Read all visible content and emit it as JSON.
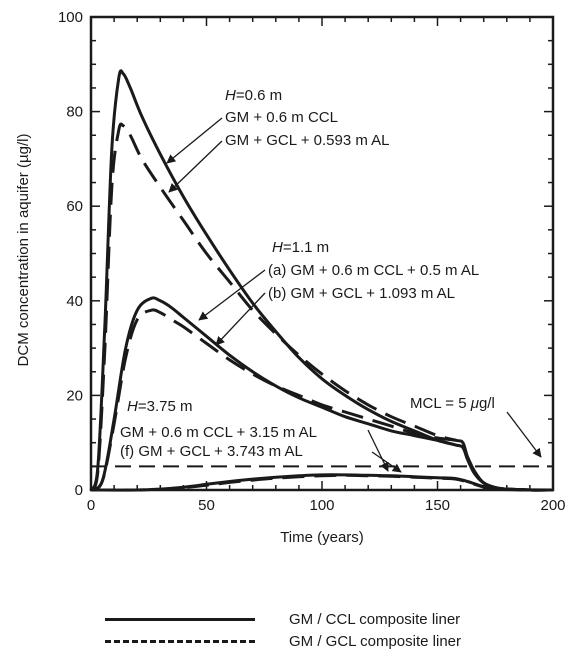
{
  "chart_data": {
    "type": "line",
    "xlabel": "Time (years)",
    "ylabel": "DCM concentration in aquifer (µg/l)",
    "xlim": [
      0,
      200
    ],
    "ylim": [
      0,
      100
    ],
    "x_ticks": [
      "0",
      "50",
      "100",
      "150",
      "200"
    ],
    "y_ticks": [
      "0",
      "20",
      "40",
      "60",
      "80",
      "100"
    ],
    "grid": false,
    "series": [
      {
        "style": "solid",
        "group": "H=0.6 m",
        "x": [
          0,
          3,
          6,
          9,
          12,
          14,
          17,
          22,
          30,
          40,
          50,
          60,
          70,
          80,
          90,
          100,
          110,
          120,
          130,
          140,
          150,
          158,
          161,
          163,
          166,
          170,
          175,
          180,
          190,
          200
        ],
        "y": [
          0,
          5,
          35,
          72,
          87,
          88,
          85,
          79,
          71,
          62,
          54,
          46.5,
          39.5,
          33.5,
          28,
          23.5,
          20,
          17,
          14.5,
          12.5,
          10.5,
          9.5,
          9,
          6.5,
          3.5,
          1.5,
          0.5,
          0.2,
          0,
          0
        ]
      },
      {
        "style": "dashed",
        "group": "H=0.6 m",
        "x": [
          0,
          3,
          6,
          9,
          12,
          14,
          17,
          22,
          30,
          40,
          50,
          60,
          70,
          80,
          90,
          100,
          110,
          120,
          130,
          140,
          150,
          158,
          161,
          163,
          166,
          170,
          175,
          180,
          190,
          200
        ],
        "y": [
          0,
          4,
          30,
          64,
          76,
          77,
          75,
          70,
          64,
          57,
          50,
          44,
          38,
          33,
          28.5,
          24.5,
          21,
          18,
          15.5,
          13.5,
          11.5,
          10.5,
          10,
          7,
          4,
          1.5,
          0.5,
          0.2,
          0,
          0
        ]
      },
      {
        "style": "solid",
        "group": "H=1.1 m",
        "x": [
          0,
          5,
          10,
          15,
          20,
          26,
          30,
          35,
          40,
          50,
          60,
          70,
          80,
          90,
          100,
          110,
          120,
          130,
          140,
          150,
          158,
          161,
          163,
          166,
          170,
          175,
          180,
          190,
          200
        ],
        "y": [
          0,
          2,
          15,
          30,
          38,
          40.5,
          40,
          38.5,
          36.5,
          32.5,
          28.5,
          25,
          22,
          19.5,
          17.5,
          15.5,
          14,
          12.5,
          11.5,
          10.5,
          9.5,
          9,
          6.5,
          3.5,
          1.5,
          0.5,
          0.2,
          0,
          0
        ]
      },
      {
        "style": "dashed",
        "group": "H=1.1 m",
        "x": [
          0,
          5,
          10,
          15,
          20,
          26,
          30,
          35,
          40,
          50,
          60,
          70,
          80,
          90,
          100,
          110,
          120,
          130,
          140,
          150,
          158,
          161,
          163,
          166,
          170,
          175,
          180,
          190,
          200
        ],
        "y": [
          0,
          2,
          14,
          28,
          36,
          38,
          37.5,
          36,
          34.5,
          31,
          27.5,
          24.5,
          22,
          20,
          18,
          16.5,
          15,
          13.5,
          12,
          11,
          10.5,
          10,
          7,
          4,
          1.5,
          0.5,
          0.2,
          0,
          0
        ]
      },
      {
        "style": "solid",
        "group": "H=3.75 m",
        "x": [
          0,
          20,
          30,
          40,
          50,
          60,
          70,
          80,
          90,
          100,
          110,
          120,
          130,
          140,
          150,
          158,
          163,
          168,
          172,
          178,
          185,
          200
        ],
        "y": [
          0,
          0,
          0.2,
          0.6,
          1.2,
          1.8,
          2.3,
          2.7,
          3,
          3.2,
          3.2,
          3.1,
          3,
          2.8,
          2.6,
          2.4,
          1.8,
          1,
          0.5,
          0.2,
          0.05,
          0
        ]
      },
      {
        "style": "dashed",
        "group": "H=3.75 m",
        "x": [
          0,
          20,
          30,
          40,
          50,
          60,
          70,
          80,
          90,
          100,
          110,
          120,
          130,
          140,
          150,
          158,
          163,
          168,
          172,
          178,
          185,
          200
        ],
        "y": [
          0,
          0,
          0.15,
          0.5,
          1,
          1.6,
          2.1,
          2.5,
          2.8,
          3,
          3.1,
          3,
          2.9,
          2.7,
          2.5,
          2.3,
          1.7,
          0.9,
          0.4,
          0.15,
          0.05,
          0
        ]
      }
    ],
    "mcl_line": {
      "y": 5,
      "style": "dashed"
    },
    "annotations": [
      {
        "id": "h06-h",
        "text": "H"
      },
      {
        "id": "h06",
        "text": "=0.6 m"
      },
      {
        "id": "h06-ccl",
        "text": "GM + 0.6 m CCL"
      },
      {
        "id": "h06-gcl",
        "text": "GM + GCL + 0.593 m AL"
      },
      {
        "id": "h11-h",
        "text": "H"
      },
      {
        "id": "h11",
        "text": "=1.1 m"
      },
      {
        "id": "h11-a",
        "text": "(a) GM + 0.6 m CCL + 0.5 m AL"
      },
      {
        "id": "h11-b",
        "text": "(b) GM + GCL + 1.093 m AL"
      },
      {
        "id": "h375-h",
        "text": "H"
      },
      {
        "id": "h375",
        "text": "=3.75 m"
      },
      {
        "id": "h375-ccl",
        "text": "GM + 0.6 m CCL + 3.15 m AL"
      },
      {
        "id": "h375-gcl",
        "text": "(f) GM + GCL + 3.743 m AL"
      },
      {
        "id": "mcl-pre",
        "text": "MCL = 5 "
      },
      {
        "id": "mcl-mu",
        "text": "μ"
      },
      {
        "id": "mcl-post",
        "text": "g/l"
      }
    ]
  },
  "legend": {
    "solid_label": "GM / CCL composite liner",
    "dashed_label": "GM / GCL composite liner"
  },
  "colors": {
    "ink": "#1a1a1a",
    "background": "#ffffff"
  }
}
